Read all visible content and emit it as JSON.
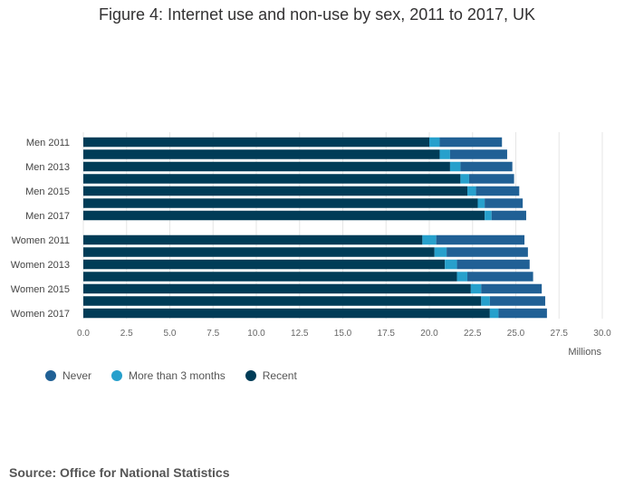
{
  "page": {
    "source": "Source: Office for National Statistics"
  },
  "chart_data": {
    "type": "bar",
    "orientation": "horizontal",
    "stacked": true,
    "title": "Figure 4: Internet use and non-use by sex, 2011 to 2017, UK",
    "xlabel": "Millions",
    "ylabel": "",
    "xlim": [
      0,
      30
    ],
    "xticks": [
      "0.0",
      "2.5",
      "5.0",
      "7.5",
      "10.0",
      "12.5",
      "15.0",
      "17.5",
      "20.0",
      "22.5",
      "25.0",
      "27.5",
      "30.0"
    ],
    "grid": true,
    "legend_position": "bottom-left",
    "categories": [
      "Men 2011",
      "",
      "Men 2013",
      "",
      "Men 2015",
      "",
      "Men 2017",
      "Women 2011",
      "",
      "Women 2013",
      "",
      "Women 2015",
      "",
      "Women 2017"
    ],
    "series": [
      {
        "name": "Recent",
        "color": "#003c57",
        "values": [
          20.0,
          20.6,
          21.2,
          21.8,
          22.2,
          22.8,
          23.2,
          19.6,
          20.3,
          20.9,
          21.6,
          22.4,
          23.0,
          23.5
        ]
      },
      {
        "name": "More than 3 months",
        "color": "#27a0cc",
        "values": [
          0.6,
          0.6,
          0.6,
          0.5,
          0.5,
          0.4,
          0.4,
          0.8,
          0.7,
          0.7,
          0.6,
          0.6,
          0.5,
          0.5
        ]
      },
      {
        "name": "Never",
        "color": "#206095",
        "values": [
          3.6,
          3.3,
          3.0,
          2.6,
          2.5,
          2.2,
          2.0,
          5.1,
          4.7,
          4.2,
          3.8,
          3.5,
          3.2,
          2.8
        ]
      }
    ],
    "legend_order": [
      "Never",
      "More than 3 months",
      "Recent"
    ]
  }
}
